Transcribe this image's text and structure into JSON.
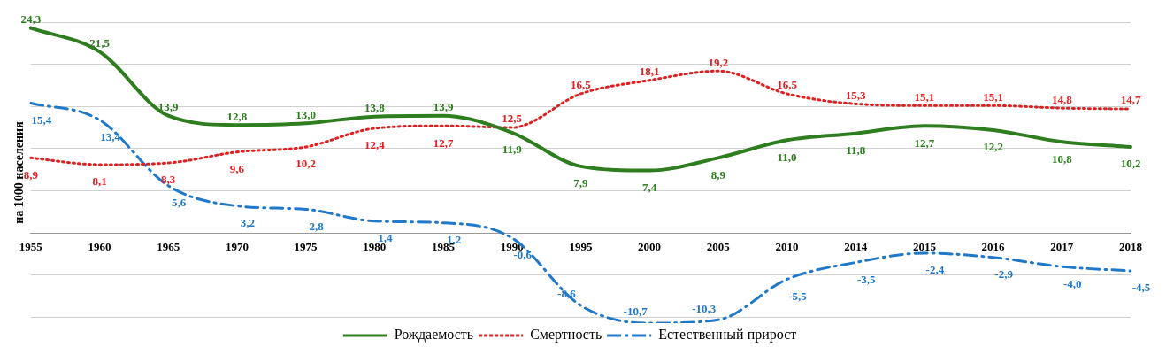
{
  "chart_data": {
    "type": "line",
    "ylabel": "на 1000 населения",
    "categories": [
      "1955",
      "1960",
      "1965",
      "1970",
      "1975",
      "1980",
      "1985",
      "1990",
      "1995",
      "2000",
      "2005",
      "2010",
      "2014",
      "2015",
      "2016",
      "2017",
      "2018"
    ],
    "yticks": [
      {
        "value": -10,
        "label": null
      },
      {
        "value": -5,
        "label": null
      },
      {
        "value": 0,
        "label": null
      },
      {
        "value": 5,
        "label": null
      },
      {
        "value": 10,
        "label": null
      },
      {
        "value": 15,
        "label": null
      },
      {
        "value": 20,
        "label": null
      },
      {
        "value": 25,
        "label": null
      }
    ],
    "tick_labels": "x",
    "grid": "y",
    "legend": "bottom",
    "marker": "none",
    "series": [
      {
        "name": "Рождаемость",
        "color": "#2e7d1f",
        "line_style": "solid",
        "values": [
          24.3,
          21.5,
          13.9,
          12.8,
          13.0,
          13.8,
          13.9,
          11.9,
          7.9,
          7.4,
          8.9,
          11.0,
          11.8,
          12.7,
          12.2,
          10.8,
          10.2
        ],
        "value_labels": [
          "24,3",
          "21,5",
          "13,9",
          "12,8",
          "13,0",
          "13,8",
          "13,9",
          "11,9",
          "7,9",
          "7,4",
          "8,9",
          "11,0",
          "11,8",
          "12,7",
          "12,2",
          "10,8",
          "10,2"
        ]
      },
      {
        "name": "Смертность",
        "color": "#e02020",
        "line_style": "dotted",
        "values": [
          8.9,
          8.1,
          8.3,
          9.6,
          10.2,
          12.4,
          12.7,
          12.5,
          16.5,
          18.1,
          19.2,
          16.5,
          15.3,
          15.1,
          15.1,
          14.8,
          14.7
        ],
        "value_labels": [
          "8,9",
          "8,1",
          "8,3",
          "9,6",
          "10,2",
          "12,4",
          "12,7",
          "12,5",
          "16,5",
          "18,1",
          "19,2",
          "16,5",
          "15,3",
          "15,1",
          "15,1",
          "14,8",
          "14,7"
        ]
      },
      {
        "name": "Естественный прирост",
        "color": "#1f78c8",
        "line_style": "dashed",
        "values": [
          15.4,
          13.4,
          5.6,
          3.2,
          2.8,
          1.4,
          1.2,
          -0.6,
          -8.6,
          -10.7,
          -10.3,
          -5.5,
          -3.5,
          -2.4,
          -2.9,
          -4.0,
          -4.5
        ],
        "value_labels": [
          "15,4",
          "13,4",
          "5,6",
          "3,2",
          "2,8",
          "1,4",
          "1,2",
          "-0,6",
          "-8,6",
          "-10,7",
          "-10,3",
          "-5,5",
          "-3,5",
          "-2,4",
          "-2,9",
          "-4,0",
          "-4,5"
        ]
      }
    ]
  }
}
